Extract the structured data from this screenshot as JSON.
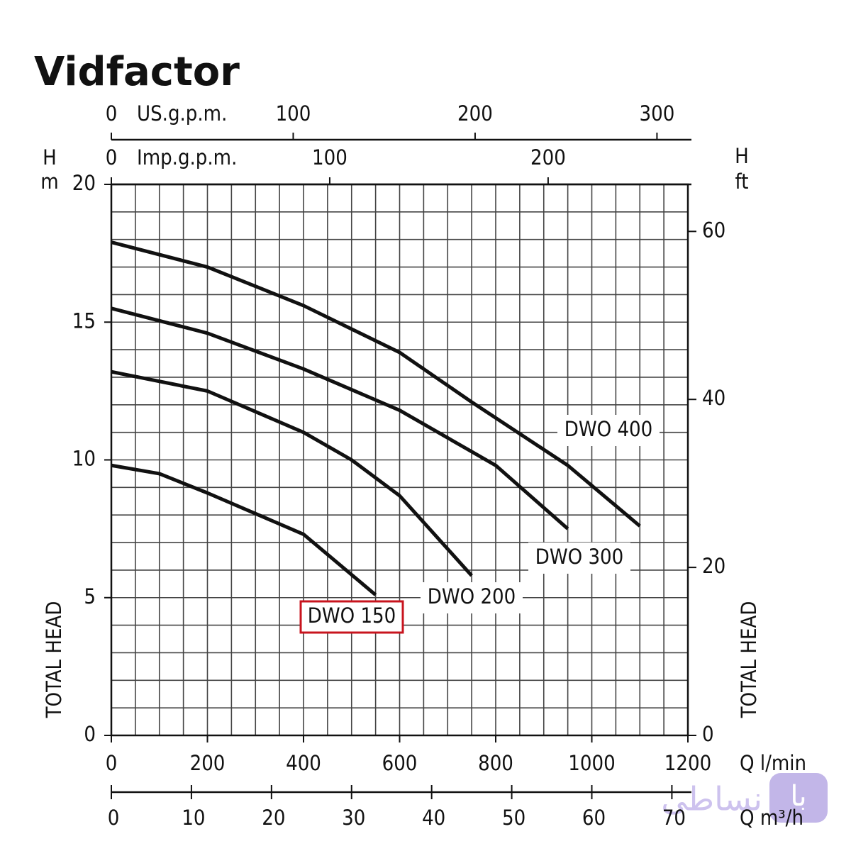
{
  "watermarks": {
    "logo": "Vidfactor",
    "badge": "با",
    "brand": "نساطی"
  },
  "chart_data": {
    "type": "line",
    "x_title": "Q l/min",
    "y_symbol": "H",
    "y_unit": "m",
    "y_title": "TOTAL HEAD",
    "xlim": [
      0,
      1200
    ],
    "xticks": [
      0,
      200,
      400,
      600,
      800,
      1000,
      1200
    ],
    "ylim": [
      0,
      20
    ],
    "yticks": [
      0,
      5,
      10,
      15,
      20
    ],
    "grid": true,
    "series": [
      {
        "name": "DWO 400",
        "color": "#111111",
        "x": [
          0,
          200,
          400,
          600,
          750,
          950,
          1100
        ],
        "values": [
          17.9,
          17.0,
          15.6,
          13.9,
          12.1,
          9.8,
          7.6
        ]
      },
      {
        "name": "DWO 300",
        "color": "#111111",
        "x": [
          0,
          200,
          400,
          600,
          800,
          950
        ],
        "values": [
          15.5,
          14.6,
          13.3,
          11.8,
          9.8,
          7.5
        ]
      },
      {
        "name": "DWO 200",
        "color": "#111111",
        "x": [
          0,
          200,
          400,
          500,
          600,
          750
        ],
        "values": [
          13.2,
          12.5,
          11.0,
          10.0,
          8.7,
          5.8
        ]
      },
      {
        "name": "DWO 150",
        "color": "#111111",
        "x": [
          0,
          100,
          200,
          400,
          550
        ],
        "values": [
          9.8,
          9.5,
          8.8,
          7.3,
          5.1
        ],
        "highlight_color": "#c8141e"
      }
    ],
    "secondary_axes": [
      {
        "side": "top",
        "label": "US.g.p.m.",
        "lim": [
          0,
          317
        ],
        "ticks": [
          0,
          100,
          200,
          300
        ]
      },
      {
        "side": "top",
        "label": "Imp.g.p.m.",
        "lim": [
          0,
          264
        ],
        "ticks": [
          0,
          100,
          200
        ]
      },
      {
        "side": "bottom",
        "label": "Q m³/h",
        "lim": [
          0,
          72
        ],
        "ticks": [
          0,
          10,
          20,
          30,
          40,
          50,
          60,
          70
        ]
      },
      {
        "side": "right",
        "symbol": "H",
        "unit": "ft",
        "title": "TOTAL HEAD",
        "lim": [
          0,
          65.6
        ],
        "ticks": [
          0,
          20,
          40,
          60
        ]
      }
    ]
  }
}
